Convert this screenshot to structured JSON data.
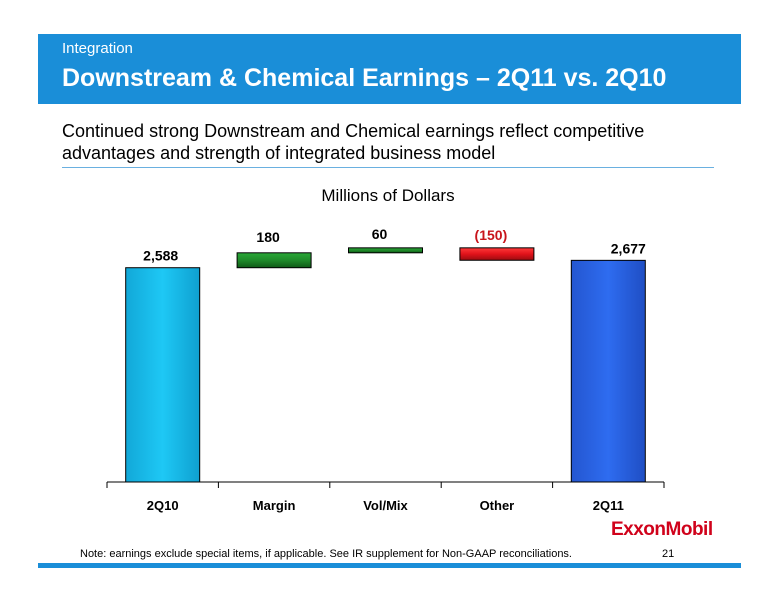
{
  "header": {
    "tag": "Integration",
    "title": "Downstream & Chemical Earnings – 2Q11 vs. 2Q10"
  },
  "subtitle": "Continued strong Downstream and Chemical earnings reflect competitive advantages and strength of integrated business model",
  "footer": {
    "note": "Note: earnings exclude special items, if applicable. See IR supplement for Non-GAAP reconciliations.",
    "page": "21",
    "logo": "ExxonMobil"
  },
  "colors": {
    "brand_blue": "#1a8ed8",
    "start_bar": "#1ec8f5",
    "end_bar": "#2e6cf0",
    "positive": "#1f8a2a",
    "negative": "#e0121a",
    "negative_label": "#c8141b"
  },
  "chart_data": {
    "type": "bar",
    "subtype": "waterfall",
    "title": "Millions of Dollars",
    "categories": [
      "2Q10",
      "Margin",
      "Vol/Mix",
      "Other",
      "2Q11"
    ],
    "values": [
      2588,
      180,
      60,
      -150,
      2677
    ],
    "labels": [
      "2,588",
      "180",
      "60",
      "(150)",
      "2,677"
    ],
    "kinds": [
      "total",
      "delta",
      "delta",
      "delta",
      "total"
    ],
    "ylim": [
      0,
      3600
    ],
    "grid": false,
    "legend": "none"
  }
}
